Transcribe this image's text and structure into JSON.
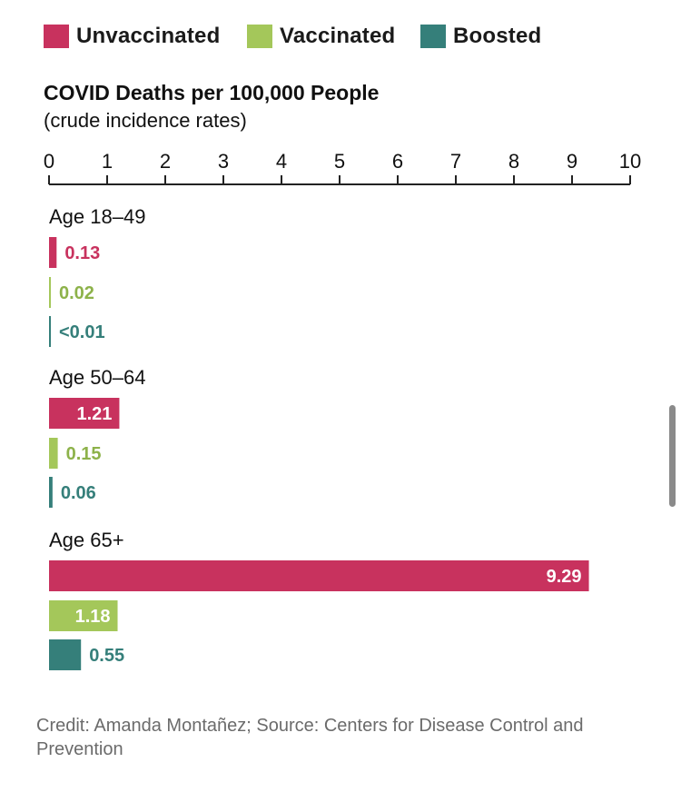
{
  "legend": [
    {
      "label": "Unvaccinated",
      "color": "#C8325E"
    },
    {
      "label": "Vaccinated",
      "color": "#A4C75A"
    },
    {
      "label": "Boosted",
      "color": "#357F7A"
    }
  ],
  "chart_data": {
    "type": "bar",
    "orientation": "horizontal",
    "title": "COVID Deaths per 100,000 People",
    "subtitle": "(crude incidence rates)",
    "xlim": [
      0,
      10
    ],
    "xticks": [
      "0",
      "1",
      "2",
      "3",
      "4",
      "5",
      "6",
      "7",
      "8",
      "9",
      "10"
    ],
    "categories": [
      "Age 18–49",
      "Age 50–64",
      "Age 65+"
    ],
    "series": [
      {
        "name": "Unvaccinated",
        "color": "#C8325E",
        "label_color": "#C8325E",
        "values": [
          0.13,
          1.21,
          9.29
        ],
        "labels": [
          "0.13",
          "1.21",
          "9.29"
        ]
      },
      {
        "name": "Vaccinated",
        "color": "#A4C75A",
        "label_color": "#8DB24A",
        "values": [
          0.02,
          0.15,
          1.18
        ],
        "labels": [
          "0.02",
          "0.15",
          "1.18"
        ]
      },
      {
        "name": "Boosted",
        "color": "#357F7A",
        "label_color": "#357F7A",
        "values": [
          0.005,
          0.06,
          0.55
        ],
        "labels": [
          "<0.01",
          "0.06",
          "0.55"
        ]
      }
    ]
  },
  "credit": "Credit: Amanda Montañez; Source: Centers for Disease Control and Prevention"
}
